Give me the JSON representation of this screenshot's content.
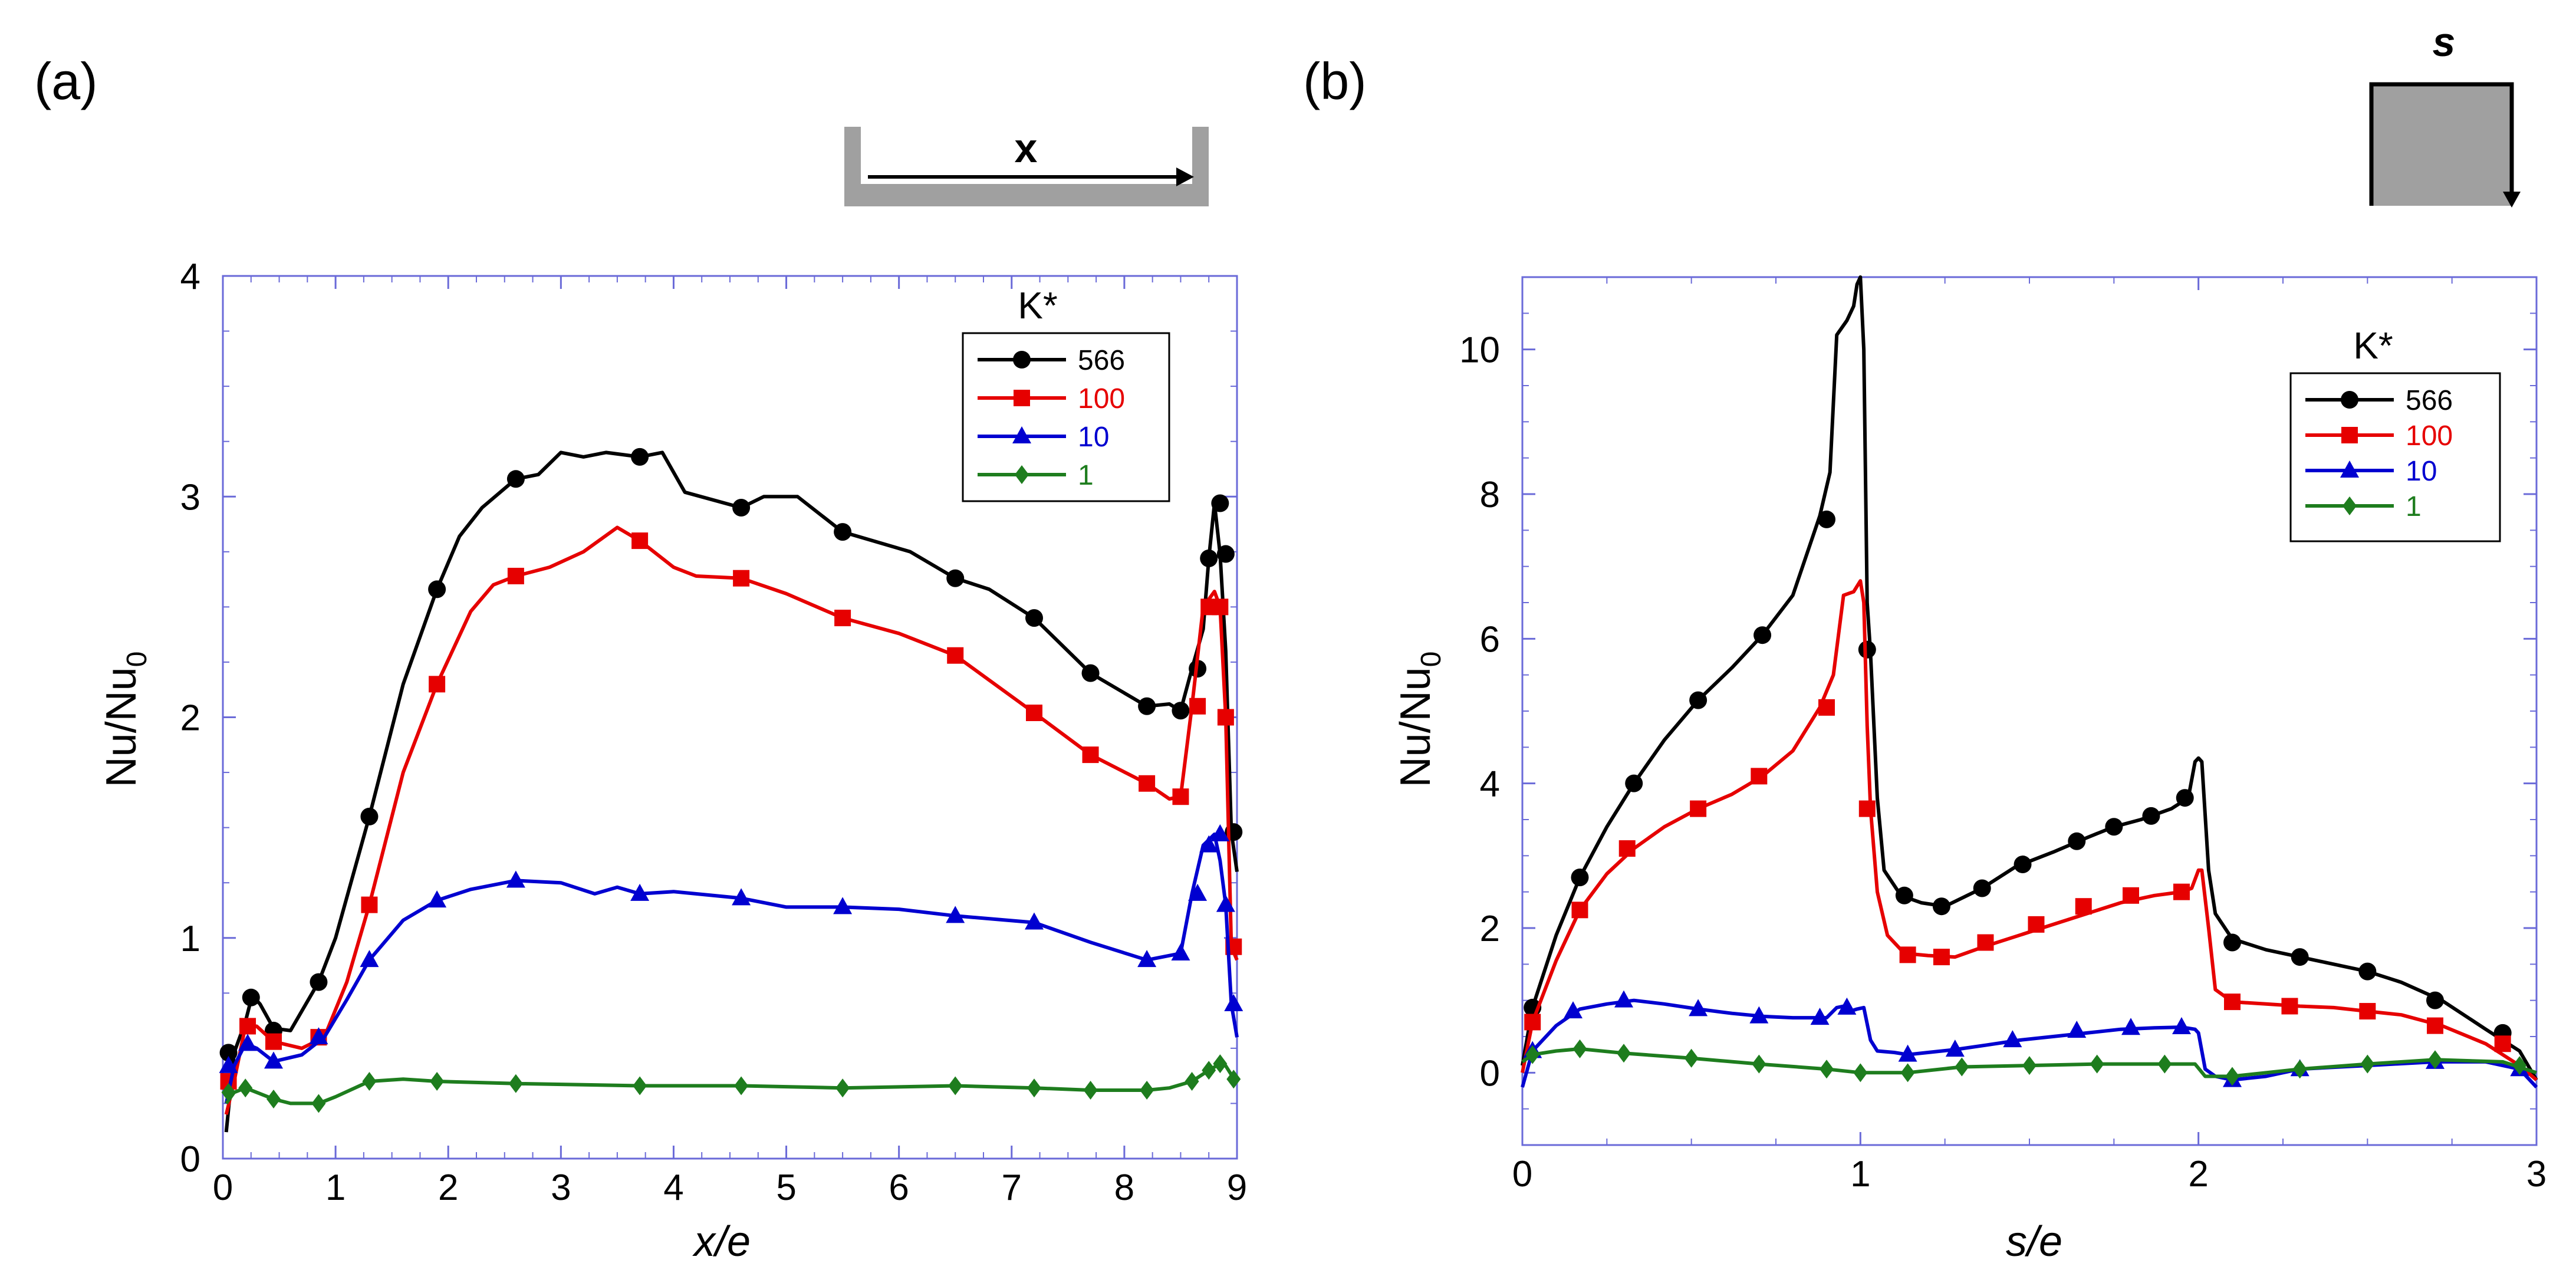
{
  "chart_data": [
    {
      "type": "line",
      "panel_label": "(a)",
      "xlabel": "x/e",
      "ylabel_main": "Nu/Nu",
      "ylabel_sub": "0",
      "xlim": [
        0,
        9
      ],
      "ylim": [
        0,
        4
      ],
      "xticks": [
        0,
        1,
        2,
        3,
        4,
        5,
        6,
        7,
        8,
        9
      ],
      "yticks": [
        0,
        1,
        2,
        3,
        4
      ],
      "legend_title": "K*",
      "legend_position": "top-right",
      "inset_label": "x",
      "series": [
        {
          "name": "566",
          "color": "#000000",
          "marker": "circle",
          "x": [
            0.03,
            0.1,
            0.2,
            0.26,
            0.33,
            0.45,
            0.6,
            0.85,
            1.0,
            1.3,
            1.6,
            1.9,
            2.1,
            2.3,
            2.6,
            2.8,
            3.0,
            3.2,
            3.4,
            3.7,
            3.9,
            4.1,
            4.6,
            4.8,
            5.1,
            5.5,
            6.1,
            6.5,
            6.8,
            7.2,
            7.7,
            8.2,
            8.4,
            8.5,
            8.6,
            8.7,
            8.75,
            8.8,
            8.85,
            8.9,
            8.95,
            9.0
          ],
          "y": [
            0.12,
            0.48,
            0.62,
            0.74,
            0.7,
            0.59,
            0.58,
            0.8,
            1.0,
            1.55,
            2.15,
            2.58,
            2.82,
            2.95,
            3.08,
            3.1,
            3.2,
            3.18,
            3.2,
            3.18,
            3.2,
            3.02,
            2.95,
            3.0,
            3.0,
            2.84,
            2.75,
            2.63,
            2.58,
            2.45,
            2.2,
            2.05,
            2.06,
            2.03,
            2.22,
            2.4,
            2.72,
            2.97,
            2.74,
            2.3,
            1.48,
            1.3
          ],
          "marked_x": [
            0.05,
            0.25,
            0.45,
            0.85,
            1.3,
            1.9,
            2.6,
            3.7,
            4.6,
            5.5,
            6.5,
            7.2,
            7.7,
            8.2,
            8.5,
            8.65,
            8.75,
            8.85,
            8.9,
            8.97
          ],
          "marked_y": [
            0.48,
            0.73,
            0.58,
            0.8,
            1.55,
            2.58,
            3.08,
            3.18,
            2.95,
            2.84,
            2.63,
            2.45,
            2.2,
            2.05,
            2.03,
            2.22,
            2.72,
            2.97,
            2.74,
            1.48
          ]
        },
        {
          "name": "100",
          "color": "#e60000",
          "marker": "square",
          "x": [
            0.03,
            0.1,
            0.2,
            0.3,
            0.45,
            0.7,
            0.9,
            1.1,
            1.3,
            1.6,
            1.9,
            2.2,
            2.4,
            2.6,
            2.9,
            3.2,
            3.5,
            3.7,
            4.0,
            4.2,
            4.6,
            5.0,
            5.5,
            6.0,
            6.5,
            7.2,
            7.7,
            8.2,
            8.4,
            8.5,
            8.6,
            8.7,
            8.8,
            8.85,
            8.9,
            8.95,
            9.0
          ],
          "y": [
            0.2,
            0.35,
            0.6,
            0.6,
            0.53,
            0.5,
            0.55,
            0.8,
            1.15,
            1.75,
            2.15,
            2.48,
            2.6,
            2.64,
            2.68,
            2.75,
            2.86,
            2.8,
            2.68,
            2.64,
            2.63,
            2.56,
            2.45,
            2.38,
            2.28,
            2.02,
            1.83,
            1.7,
            1.63,
            1.64,
            2.05,
            2.5,
            2.57,
            2.5,
            2.0,
            0.96,
            0.9
          ],
          "marked_x": [
            0.05,
            0.22,
            0.45,
            0.85,
            1.3,
            1.9,
            2.6,
            3.7,
            4.6,
            5.5,
            6.5,
            7.2,
            7.7,
            8.2,
            8.5,
            8.65,
            8.75,
            8.85,
            8.9,
            8.97
          ],
          "marked_y": [
            0.35,
            0.6,
            0.53,
            0.55,
            1.15,
            2.15,
            2.64,
            2.8,
            2.63,
            2.45,
            2.28,
            2.02,
            1.83,
            1.7,
            1.64,
            2.05,
            2.5,
            2.5,
            2.0,
            0.96
          ]
        },
        {
          "name": "10",
          "color": "#0000d0",
          "marker": "triangle",
          "x": [
            0.03,
            0.1,
            0.2,
            0.3,
            0.45,
            0.7,
            0.9,
            1.1,
            1.3,
            1.6,
            1.9,
            2.2,
            2.6,
            3.0,
            3.3,
            3.5,
            3.7,
            4.0,
            4.6,
            5.0,
            5.5,
            6.0,
            6.5,
            7.2,
            7.7,
            8.2,
            8.4,
            8.5,
            8.6,
            8.7,
            8.8,
            8.85,
            8.9,
            8.95,
            9.0
          ],
          "y": [
            0.25,
            0.42,
            0.52,
            0.5,
            0.44,
            0.47,
            0.55,
            0.72,
            0.9,
            1.08,
            1.17,
            1.22,
            1.26,
            1.25,
            1.2,
            1.23,
            1.2,
            1.21,
            1.18,
            1.14,
            1.14,
            1.13,
            1.1,
            1.07,
            0.98,
            0.9,
            0.92,
            0.93,
            1.2,
            1.42,
            1.47,
            1.35,
            1.15,
            0.7,
            0.55
          ],
          "marked_x": [
            0.05,
            0.22,
            0.45,
            0.85,
            1.3,
            1.9,
            2.6,
            3.7,
            4.6,
            5.5,
            6.5,
            7.2,
            8.2,
            8.5,
            8.65,
            8.75,
            8.85,
            8.9,
            8.97
          ],
          "marked_y": [
            0.42,
            0.52,
            0.44,
            0.55,
            0.9,
            1.17,
            1.26,
            1.2,
            1.18,
            1.14,
            1.1,
            1.07,
            0.9,
            0.93,
            1.2,
            1.42,
            1.47,
            1.15,
            0.7
          ]
        },
        {
          "name": "1",
          "color": "#1e7d1e",
          "marker": "diamond",
          "x": [
            0.03,
            0.1,
            0.2,
            0.3,
            0.45,
            0.6,
            0.85,
            1.0,
            1.3,
            1.6,
            1.9,
            2.6,
            3.7,
            4.6,
            5.5,
            6.5,
            7.2,
            7.7,
            8.2,
            8.4,
            8.6,
            8.75,
            8.85,
            8.9,
            8.95,
            9.0
          ],
          "y": [
            0.25,
            0.3,
            0.32,
            0.3,
            0.27,
            0.25,
            0.25,
            0.28,
            0.35,
            0.36,
            0.35,
            0.34,
            0.33,
            0.33,
            0.32,
            0.33,
            0.32,
            0.31,
            0.31,
            0.32,
            0.35,
            0.4,
            0.43,
            0.42,
            0.38,
            0.35
          ],
          "marked_x": [
            0.05,
            0.2,
            0.45,
            0.85,
            1.3,
            1.9,
            2.6,
            3.7,
            4.6,
            5.5,
            6.5,
            7.2,
            7.7,
            8.2,
            8.6,
            8.75,
            8.85,
            8.97
          ],
          "marked_y": [
            0.3,
            0.32,
            0.27,
            0.25,
            0.35,
            0.35,
            0.34,
            0.33,
            0.33,
            0.32,
            0.33,
            0.32,
            0.31,
            0.31,
            0.35,
            0.4,
            0.43,
            0.36
          ]
        }
      ]
    },
    {
      "type": "line",
      "panel_label": "(b)",
      "xlabel": "s/e",
      "ylabel_main": "Nu/Nu",
      "ylabel_sub": "0",
      "xlim": [
        0,
        3
      ],
      "ylim": [
        -1,
        11
      ],
      "xticks": [
        0,
        1,
        2,
        3
      ],
      "yticks": [
        0,
        2,
        4,
        6,
        8,
        10
      ],
      "legend_title": "K*",
      "legend_position": "top-right",
      "inset_label": "s",
      "series": [
        {
          "name": "566",
          "color": "#000000",
          "marker": "circle",
          "x": [
            0.0,
            0.03,
            0.1,
            0.17,
            0.25,
            0.33,
            0.42,
            0.52,
            0.62,
            0.71,
            0.8,
            0.88,
            0.91,
            0.93,
            0.96,
            0.98,
            0.99,
            1.0,
            1.01,
            1.02,
            1.03,
            1.05,
            1.07,
            1.12,
            1.18,
            1.25,
            1.36,
            1.46,
            1.57,
            1.67,
            1.75,
            1.83,
            1.92,
            1.97,
            1.99,
            2.0,
            2.01,
            2.03,
            2.05,
            2.1,
            2.2,
            2.3,
            2.4,
            2.5,
            2.6,
            2.72,
            2.85,
            2.95,
            3.0
          ],
          "y": [
            0.1,
            0.9,
            1.9,
            2.7,
            3.4,
            4.0,
            4.6,
            5.15,
            5.6,
            6.05,
            6.6,
            7.7,
            8.3,
            10.2,
            10.4,
            10.6,
            10.9,
            11.0,
            10.0,
            6.5,
            5.8,
            3.8,
            2.8,
            2.45,
            2.35,
            2.3,
            2.55,
            2.85,
            3.05,
            3.25,
            3.4,
            3.5,
            3.65,
            3.8,
            4.3,
            4.35,
            4.3,
            2.8,
            2.2,
            1.85,
            1.7,
            1.6,
            1.5,
            1.4,
            1.25,
            1.0,
            0.6,
            0.3,
            -0.1
          ],
          "marked_x": [
            0.03,
            0.17,
            0.33,
            0.52,
            0.71,
            0.9,
            1.02,
            1.13,
            1.24,
            1.36,
            1.48,
            1.64,
            1.75,
            1.86,
            1.96,
            2.1,
            2.3,
            2.5,
            2.7,
            2.9
          ],
          "marked_y": [
            0.9,
            2.7,
            4.0,
            5.15,
            6.05,
            7.65,
            5.85,
            2.45,
            2.3,
            2.55,
            2.88,
            3.2,
            3.4,
            3.55,
            3.8,
            1.8,
            1.6,
            1.4,
            1.0,
            0.55
          ]
        },
        {
          "name": "100",
          "color": "#e60000",
          "marker": "square",
          "x": [
            0.0,
            0.03,
            0.1,
            0.17,
            0.25,
            0.33,
            0.42,
            0.52,
            0.62,
            0.71,
            0.8,
            0.88,
            0.92,
            0.95,
            0.98,
            1.0,
            1.01,
            1.02,
            1.03,
            1.05,
            1.08,
            1.13,
            1.2,
            1.28,
            1.37,
            1.47,
            1.57,
            1.67,
            1.77,
            1.87,
            1.95,
            1.98,
            2.0,
            2.01,
            2.03,
            2.05,
            2.1,
            2.2,
            2.3,
            2.4,
            2.5,
            2.6,
            2.72,
            2.85,
            2.95,
            3.0
          ],
          "y": [
            0.0,
            0.7,
            1.55,
            2.25,
            2.75,
            3.1,
            3.4,
            3.65,
            3.85,
            4.1,
            4.45,
            5.05,
            5.5,
            6.6,
            6.65,
            6.8,
            6.5,
            4.8,
            3.65,
            2.5,
            1.9,
            1.65,
            1.62,
            1.6,
            1.75,
            1.9,
            2.05,
            2.2,
            2.35,
            2.45,
            2.5,
            2.55,
            2.8,
            2.8,
            2.0,
            1.15,
            0.98,
            0.95,
            0.92,
            0.9,
            0.85,
            0.8,
            0.65,
            0.4,
            0.1,
            -0.1
          ],
          "marked_x": [
            0.03,
            0.17,
            0.31,
            0.52,
            0.7,
            0.9,
            1.02,
            1.14,
            1.24,
            1.37,
            1.52,
            1.66,
            1.8,
            1.95,
            2.1,
            2.27,
            2.5,
            2.7,
            2.9
          ],
          "marked_y": [
            0.7,
            2.25,
            3.1,
            3.65,
            4.1,
            5.05,
            3.65,
            1.63,
            1.6,
            1.8,
            2.05,
            2.3,
            2.45,
            2.5,
            0.98,
            0.92,
            0.85,
            0.65,
            0.4
          ]
        },
        {
          "name": "10",
          "color": "#0000d0",
          "marker": "triangle",
          "x": [
            0.0,
            0.03,
            0.1,
            0.17,
            0.25,
            0.33,
            0.42,
            0.52,
            0.62,
            0.71,
            0.8,
            0.9,
            0.93,
            0.95,
            0.97,
            0.99,
            1.01,
            1.03,
            1.05,
            1.1,
            1.14,
            1.2,
            1.28,
            1.37,
            1.47,
            1.57,
            1.67,
            1.77,
            1.87,
            1.95,
            1.99,
            2.0,
            2.02,
            2.05,
            2.1,
            2.2,
            2.3,
            2.5,
            2.7,
            2.85,
            2.95,
            3.0
          ],
          "y": [
            -0.2,
            0.3,
            0.65,
            0.88,
            0.95,
            1.0,
            0.95,
            0.88,
            0.82,
            0.78,
            0.76,
            0.76,
            0.9,
            0.92,
            0.85,
            0.88,
            0.9,
            0.45,
            0.3,
            0.28,
            0.25,
            0.28,
            0.32,
            0.38,
            0.45,
            0.5,
            0.55,
            0.6,
            0.62,
            0.63,
            0.6,
            0.55,
            0.05,
            -0.05,
            -0.1,
            -0.05,
            0.05,
            0.1,
            0.15,
            0.15,
            0.05,
            -0.2
          ],
          "marked_x": [
            0.03,
            0.15,
            0.3,
            0.52,
            0.7,
            0.88,
            0.96,
            1.14,
            1.28,
            1.45,
            1.64,
            1.8,
            1.95,
            2.1,
            2.3,
            2.7,
            2.95
          ],
          "marked_y": [
            0.3,
            0.85,
            1.0,
            0.88,
            0.78,
            0.76,
            0.9,
            0.25,
            0.32,
            0.45,
            0.58,
            0.62,
            0.63,
            -0.1,
            0.05,
            0.15,
            0.05
          ]
        },
        {
          "name": "1",
          "color": "#1e7d1e",
          "marker": "diamond",
          "x": [
            0.0,
            0.03,
            0.1,
            0.17,
            0.3,
            0.5,
            0.7,
            0.9,
            1.0,
            1.14,
            1.3,
            1.5,
            1.7,
            1.9,
            1.99,
            2.02,
            2.1,
            2.3,
            2.5,
            2.7,
            2.9,
            3.0
          ],
          "y": [
            0.15,
            0.25,
            0.3,
            0.33,
            0.27,
            0.2,
            0.12,
            0.05,
            0.0,
            0.0,
            0.08,
            0.1,
            0.12,
            0.12,
            0.12,
            -0.05,
            -0.05,
            0.05,
            0.12,
            0.18,
            0.15,
            0.0
          ],
          "marked_x": [
            0.03,
            0.17,
            0.3,
            0.5,
            0.7,
            0.9,
            1.0,
            1.14,
            1.3,
            1.5,
            1.7,
            1.9,
            2.1,
            2.3,
            2.5,
            2.7,
            2.95
          ],
          "marked_y": [
            0.25,
            0.33,
            0.27,
            0.2,
            0.12,
            0.05,
            0.0,
            0.0,
            0.08,
            0.1,
            0.12,
            0.12,
            -0.05,
            0.05,
            0.12,
            0.18,
            0.1
          ]
        }
      ]
    }
  ]
}
